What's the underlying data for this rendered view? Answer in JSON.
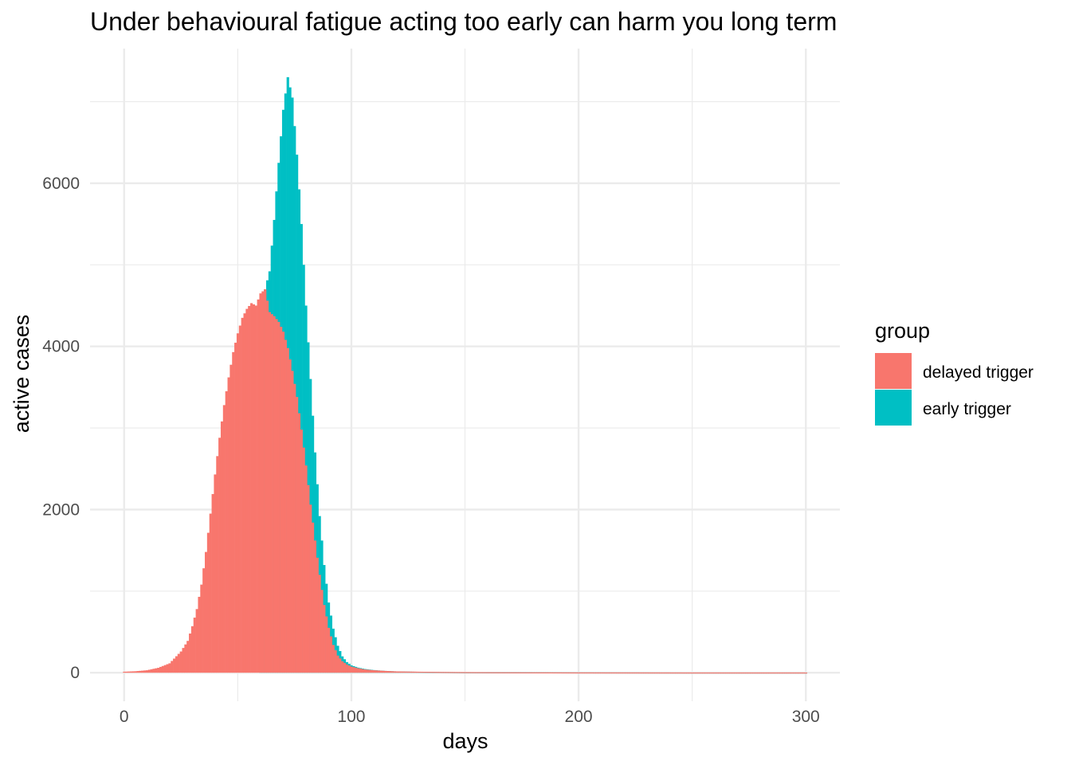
{
  "chart_data": {
    "type": "bar",
    "title": "Under behavioural fatigue acting too early can harm you long term",
    "xlabel": "days",
    "ylabel": "active cases",
    "xlim": [
      -15,
      315
    ],
    "ylim": [
      -350,
      7650
    ],
    "x_ticks": [
      0,
      100,
      200,
      300
    ],
    "y_ticks": [
      0,
      2000,
      4000,
      6000
    ],
    "x_tick_labels": [
      "0",
      "100",
      "200",
      "300"
    ],
    "y_tick_labels": [
      "0",
      "2000",
      "4000",
      "6000"
    ],
    "grid": true,
    "stacked": false,
    "legend": {
      "title": "group",
      "position": "right",
      "entries": [
        {
          "label": "delayed trigger",
          "color": "#F8766D"
        },
        {
          "label": "early trigger",
          "color": "#00BFC4"
        }
      ]
    },
    "series": [
      {
        "name": "delayed trigger",
        "color": "#F8766D",
        "x": [
          0,
          5,
          10,
          15,
          20,
          25,
          28,
          30,
          32,
          34,
          36,
          38,
          40,
          42,
          44,
          46,
          48,
          50,
          52,
          54,
          56,
          58,
          60,
          62,
          64,
          66,
          68,
          70,
          72,
          74,
          76,
          78,
          80,
          82,
          84,
          86,
          88,
          90,
          92,
          94,
          96,
          98,
          100,
          103,
          106,
          110,
          115,
          120,
          130,
          140,
          150,
          165,
          180,
          200,
          250,
          300
        ],
        "y": [
          12,
          18,
          30,
          60,
          115,
          260,
          390,
          570,
          780,
          1080,
          1480,
          1950,
          2430,
          2880,
          3280,
          3620,
          3930,
          4160,
          4350,
          4460,
          4530,
          4500,
          4650,
          4700,
          4420,
          4370,
          4300,
          4180,
          3980,
          3700,
          3380,
          2980,
          2540,
          2060,
          1620,
          1200,
          830,
          550,
          340,
          210,
          140,
          100,
          75,
          55,
          40,
          30,
          22,
          16,
          12,
          9,
          7,
          5,
          4,
          3,
          2,
          2
        ]
      },
      {
        "name": "early trigger",
        "color": "#00BFC4",
        "x": [
          60,
          62,
          64,
          66,
          68,
          70,
          72,
          74,
          76,
          78,
          80,
          82,
          84,
          86,
          88,
          90,
          92,
          94,
          96,
          98,
          100,
          103,
          106,
          110,
          115,
          120,
          130,
          140,
          150,
          165,
          180,
          200,
          250,
          300
        ],
        "y": [
          4380,
          4700,
          4920,
          5550,
          6250,
          6900,
          7300,
          7050,
          6350,
          5500,
          4500,
          3600,
          2700,
          1920,
          1320,
          860,
          540,
          330,
          200,
          130,
          90,
          62,
          45,
          32,
          22,
          16,
          11,
          8,
          6,
          5,
          4,
          3,
          2,
          2
        ]
      }
    ]
  }
}
